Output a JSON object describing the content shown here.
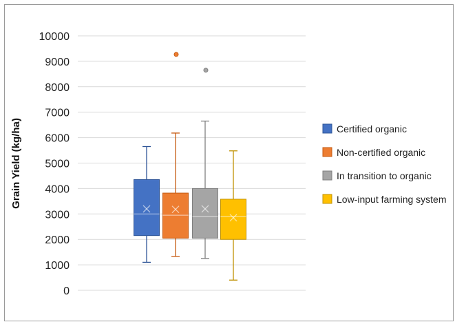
{
  "chart_data": {
    "type": "box",
    "title": "",
    "xlabel": "",
    "ylabel": "Grain Yield (kg/ha)",
    "ylim": [
      0,
      10000
    ],
    "yticks": [
      0,
      1000,
      2000,
      3000,
      4000,
      5000,
      6000,
      7000,
      8000,
      9000,
      10000
    ],
    "grid": true,
    "legend_position": "right",
    "series": [
      {
        "name": "Certified organic",
        "color": "#4472C4",
        "edge": "#2F5597",
        "min": 1100,
        "q1": 2150,
        "median": 3000,
        "q3": 4350,
        "max": 5650,
        "mean": 3200,
        "outliers": []
      },
      {
        "name": "Non-certified organic",
        "color": "#ED7D31",
        "edge": "#C55A11",
        "min": 1330,
        "q1": 2050,
        "median": 2950,
        "q3": 3820,
        "max": 6180,
        "mean": 3180,
        "outliers": [
          9270
        ]
      },
      {
        "name": "In transition to organic",
        "color": "#A5A5A5",
        "edge": "#7F7F7F",
        "min": 1250,
        "q1": 2050,
        "median": 2900,
        "q3": 4000,
        "max": 6650,
        "mean": 3200,
        "outliers": [
          8650
        ]
      },
      {
        "name": "Low-input farming system",
        "color": "#FFC000",
        "edge": "#BF9000",
        "min": 400,
        "q1": 2000,
        "median": 2900,
        "q3": 3580,
        "max": 5480,
        "mean": 2850,
        "outliers": []
      }
    ]
  }
}
